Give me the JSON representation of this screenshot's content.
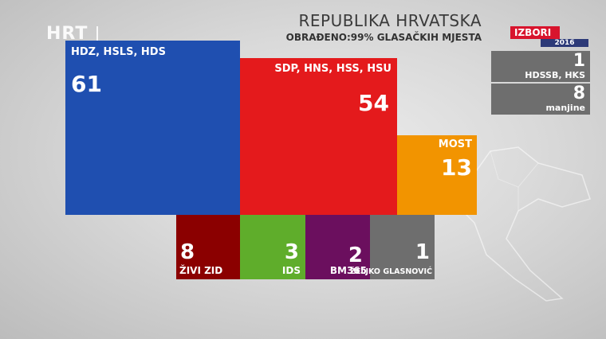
{
  "broadcaster": {
    "logo": "HRT"
  },
  "header": {
    "title": "REPUBLIKA HRVATSKA",
    "subtitle": "OBRAĐENO:99% GLASAČKIH MJESTA"
  },
  "badge": {
    "label": "IZBORI",
    "year": "2016"
  },
  "side_seats": [
    {
      "seats": "1",
      "label": "HDSSB, HKS"
    },
    {
      "seats": "8",
      "label": "manjine"
    }
  ],
  "chart_data": {
    "type": "treemap",
    "items": [
      {
        "name": "HDZ, HSLS, HDS",
        "seats": 61,
        "color": "#1f4fb0"
      },
      {
        "name": "SDP, HNS, HSS, HSU",
        "seats": 54,
        "color": "#e41a1c"
      },
      {
        "name": "MOST",
        "seats": 13,
        "color": "#f29400"
      },
      {
        "name": "ŽIVI ZID",
        "seats": 8,
        "color": "#8b0000"
      },
      {
        "name": "IDS",
        "seats": 3,
        "color": "#5fad2b"
      },
      {
        "name": "BM365",
        "seats": 2,
        "color": "#6b0f5e"
      },
      {
        "name": "ŽELJKO GLASNOVIĆ",
        "seats": 1,
        "color": "#6e6e6e"
      },
      {
        "name": "HDSSB, HKS",
        "seats": 1,
        "color": "#6e6e6e"
      },
      {
        "name": "manjine",
        "seats": 8,
        "color": "#6e6e6e"
      }
    ]
  }
}
